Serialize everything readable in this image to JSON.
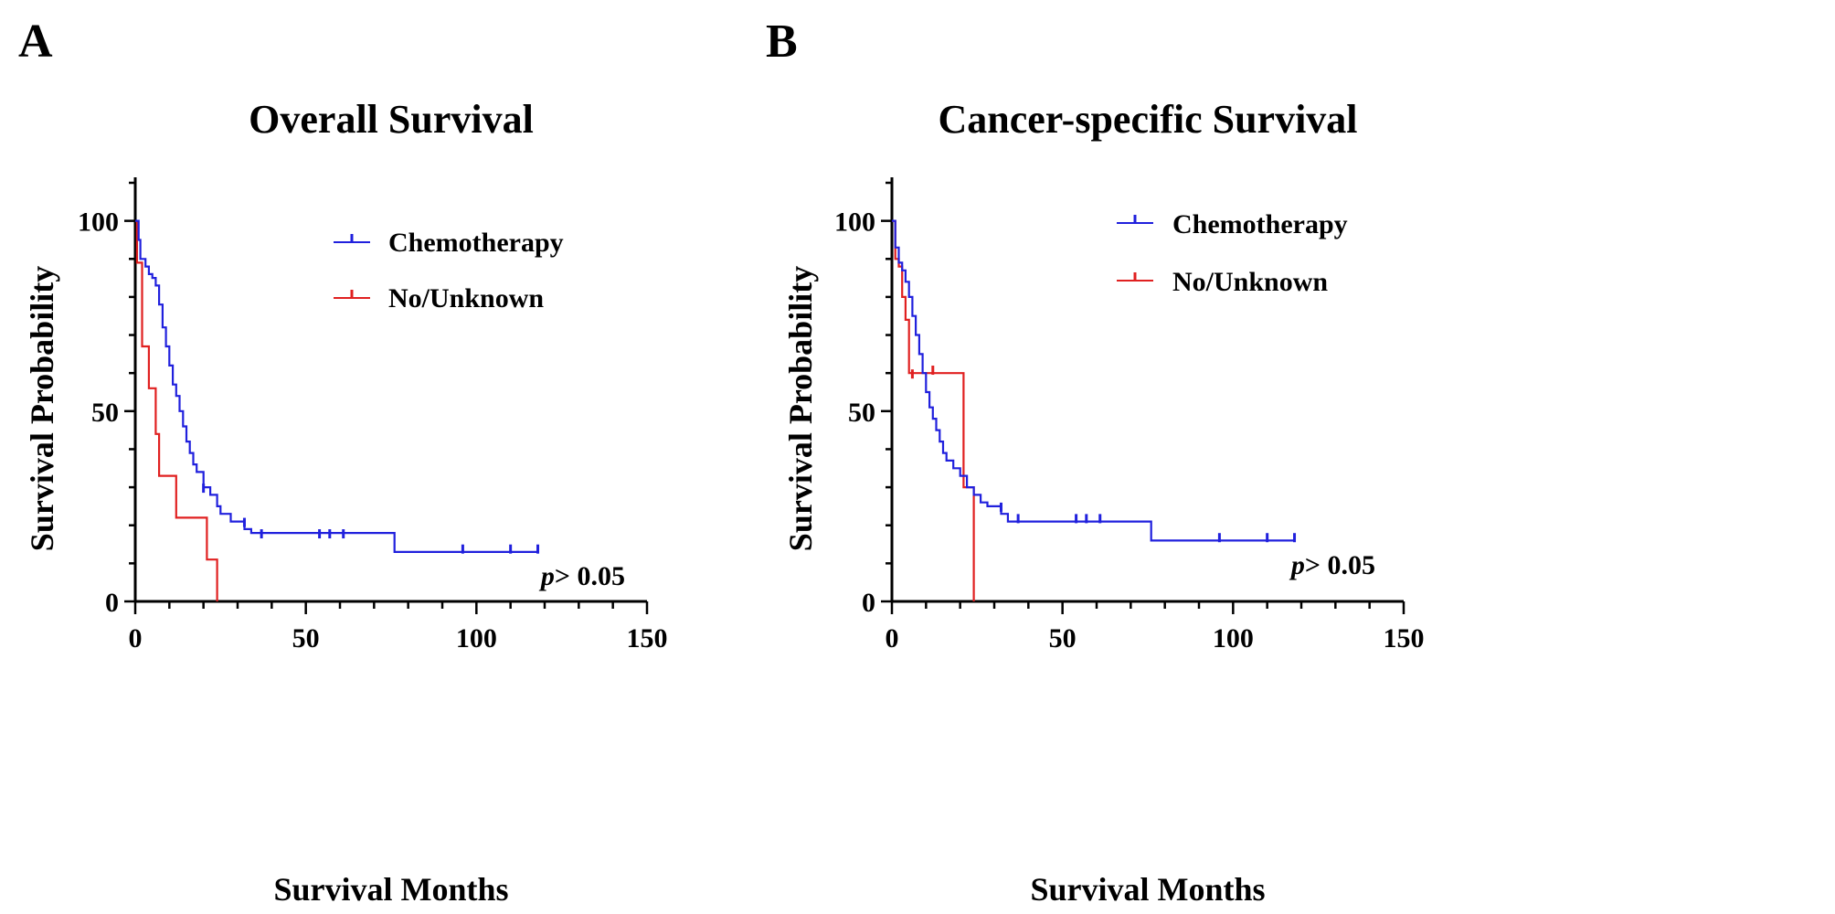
{
  "chart_data": [
    {
      "type": "line",
      "panel_label": "A",
      "title": "Overall Survival",
      "xlabel": "Survival Months",
      "ylabel": "Survival Probability",
      "xlim": [
        0,
        150
      ],
      "ylim": [
        0,
        110
      ],
      "xticks": [
        0,
        50,
        100,
        150
      ],
      "yticks": [
        0,
        50,
        100
      ],
      "xtick_labels": [
        "0",
        "50",
        "100",
        "150"
      ],
      "ytick_labels": [
        "0",
        "50",
        "100"
      ],
      "annotation": {
        "p_symbol": "p",
        "text": "> 0.05"
      },
      "legend_position": "top-center",
      "series": [
        {
          "name": "Chemotherapy",
          "color": "#2020dd",
          "steps": [
            [
              0,
              100
            ],
            [
              1,
              95
            ],
            [
              1.5,
              90
            ],
            [
              3,
              88
            ],
            [
              4,
              86
            ],
            [
              5,
              85
            ],
            [
              6,
              83
            ],
            [
              7,
              78
            ],
            [
              8,
              72
            ],
            [
              9,
              67
            ],
            [
              10,
              62
            ],
            [
              11,
              57
            ],
            [
              12,
              54
            ],
            [
              13,
              50
            ],
            [
              14,
              46
            ],
            [
              15,
              42
            ],
            [
              16,
              39
            ],
            [
              17,
              36
            ],
            [
              18,
              34
            ],
            [
              20,
              30
            ],
            [
              22,
              28
            ],
            [
              24,
              25
            ],
            [
              25,
              23
            ],
            [
              28,
              21
            ],
            [
              32,
              19
            ],
            [
              34,
              18
            ],
            [
              76,
              18
            ],
            [
              76,
              13
            ],
            [
              118,
              13
            ]
          ],
          "censored": [
            [
              20,
              30
            ],
            [
              32,
              21
            ],
            [
              37,
              18
            ],
            [
              54,
              18
            ],
            [
              57,
              18
            ],
            [
              61,
              18
            ],
            [
              96,
              14
            ],
            [
              110,
              14
            ],
            [
              118,
              14
            ]
          ]
        },
        {
          "name": "No/Unknown",
          "color": "#e02020",
          "steps": [
            [
              0,
              100
            ],
            [
              0.5,
              89
            ],
            [
              2,
              67
            ],
            [
              4,
              56
            ],
            [
              6,
              44
            ],
            [
              7,
              33
            ],
            [
              11,
              33
            ],
            [
              12,
              22
            ],
            [
              20,
              22
            ],
            [
              21,
              11
            ],
            [
              24,
              11
            ],
            [
              24,
              0
            ]
          ],
          "censored": []
        }
      ]
    },
    {
      "type": "line",
      "panel_label": "B",
      "title": "Cancer-specific Survival",
      "xlabel": "Survival Months",
      "ylabel": "Survival Probability",
      "xlim": [
        0,
        150
      ],
      "ylim": [
        0,
        110
      ],
      "xticks": [
        0,
        50,
        100,
        150
      ],
      "yticks": [
        0,
        50,
        100
      ],
      "xtick_labels": [
        "0",
        "50",
        "100",
        "150"
      ],
      "ytick_labels": [
        "0",
        "50",
        "100"
      ],
      "annotation": {
        "p_symbol": "p",
        "text": "> 0.05"
      },
      "legend_position": "top-center",
      "series": [
        {
          "name": "Chemotherapy",
          "color": "#2020dd",
          "steps": [
            [
              0,
              100
            ],
            [
              1,
              93
            ],
            [
              2,
              89
            ],
            [
              3,
              87
            ],
            [
              4,
              84
            ],
            [
              5,
              80
            ],
            [
              6,
              75
            ],
            [
              7,
              70
            ],
            [
              8,
              65
            ],
            [
              9,
              60
            ],
            [
              10,
              55
            ],
            [
              11,
              51
            ],
            [
              12,
              48
            ],
            [
              13,
              45
            ],
            [
              14,
              42
            ],
            [
              15,
              39
            ],
            [
              16,
              37
            ],
            [
              18,
              35
            ],
            [
              20,
              33
            ],
            [
              22,
              30
            ],
            [
              24,
              28
            ],
            [
              26,
              26
            ],
            [
              28,
              25
            ],
            [
              32,
              23
            ],
            [
              34,
              21
            ],
            [
              76,
              21
            ],
            [
              76,
              16
            ],
            [
              118,
              16
            ]
          ],
          "censored": [
            [
              32,
              25
            ],
            [
              37,
              22
            ],
            [
              54,
              22
            ],
            [
              57,
              22
            ],
            [
              61,
              22
            ],
            [
              96,
              17
            ],
            [
              110,
              17
            ],
            [
              118,
              17
            ]
          ]
        },
        {
          "name": "No/Unknown",
          "color": "#e02020",
          "steps": [
            [
              0,
              100
            ],
            [
              1,
              90
            ],
            [
              2,
              88
            ],
            [
              3,
              80
            ],
            [
              4,
              74
            ],
            [
              5,
              60
            ],
            [
              21,
              60
            ],
            [
              21,
              30
            ],
            [
              24,
              30
            ],
            [
              24,
              0
            ]
          ],
          "censored": [
            [
              6,
              60
            ],
            [
              12,
              61
            ]
          ]
        }
      ]
    }
  ]
}
